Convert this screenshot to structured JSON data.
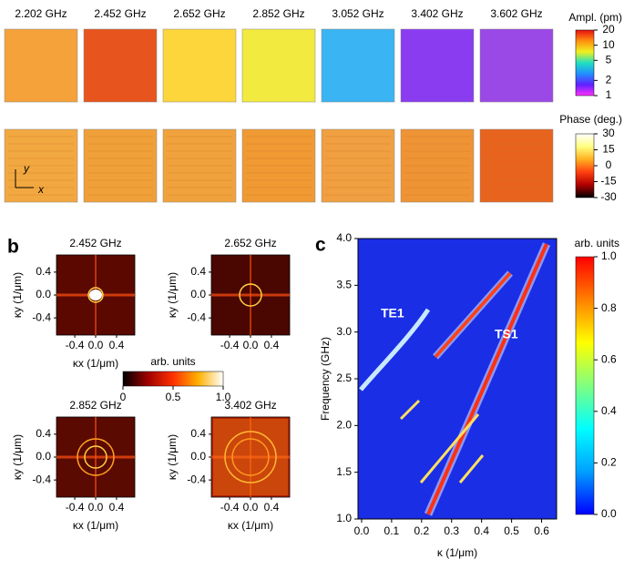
{
  "chart_data": [
    {
      "type": "image-grid",
      "panel_label": "a",
      "titles": [
        "2.202 GHz",
        "2.452 GHz",
        "2.652 GHz",
        "2.852 GHz",
        "3.052 GHz",
        "3.402 GHz",
        "3.602 GHz"
      ],
      "y_label": "y",
      "x_label": "x",
      "colorbars": [
        {
          "title": "Ampl. (pm)",
          "log": true,
          "lim": [
            1,
            20
          ],
          "ticks": [
            20,
            10,
            5,
            2,
            1
          ],
          "colormap": [
            "#ff30ff",
            "#6020ff",
            "#2090ff",
            "#20e0c0",
            "#f0f020",
            "#ff9010",
            "#e81010"
          ]
        },
        {
          "title": "Phase (deg.)",
          "log": false,
          "lim": [
            -30,
            30
          ],
          "ticks": [
            30,
            15,
            0,
            -15,
            -30
          ],
          "colormap": [
            "#000000",
            "#b00000",
            "#ff4010",
            "#ffb020",
            "#ffff80",
            "#ffffff"
          ]
        }
      ]
    },
    {
      "type": "heatmap-grid",
      "panel_label": "b",
      "titles": [
        "2.452 GHz",
        "2.652 GHz",
        "2.852 GHz",
        "3.402 GHz"
      ],
      "x_label": "κx (1/μm)",
      "y_label": "κy (1/μm)",
      "xlim": [
        -0.75,
        0.75
      ],
      "ylim": [
        -0.7,
        0.7
      ],
      "xticks": [
        -0.4,
        {
          "value": 0,
          "label": "0.0"
        },
        0.4
      ],
      "yticks": [
        0.4,
        {
          "value": 0,
          "label": "0.0"
        },
        -0.4
      ],
      "colorbar": {
        "title": "arb. units",
        "lim": [
          0,
          1
        ],
        "ticks": [
          0,
          0.5,
          {
            "value": 1,
            "label": "1.0"
          }
        ],
        "colormap": [
          "#000000",
          "#a00000",
          "#ff3000",
          "#ffb000",
          "#ffffff"
        ]
      }
    },
    {
      "type": "heatmap",
      "panel_label": "c",
      "x_label": "κ (1/μm)",
      "y_label": "Frequency (GHz)",
      "xlim": [
        -0.012,
        0.65
      ],
      "ylim": [
        1,
        4
      ],
      "xticks": [
        {
          "value": 0,
          "label": "0.0"
        },
        0.1,
        0.2,
        0.3,
        0.4,
        0.5,
        0.6
      ],
      "yticks": [
        {
          "value": 1,
          "label": "1.0"
        },
        1.5,
        {
          "value": 2,
          "label": "2.0"
        },
        2.5,
        {
          "value": 3,
          "label": "3.0"
        },
        3.5,
        {
          "value": 4,
          "label": "4.0"
        }
      ],
      "annotations": [
        "TE1",
        "TS1"
      ],
      "colorbar": {
        "title": "arb. units",
        "lim": [
          0,
          1
        ],
        "ticks": [
          {
            "value": 0,
            "label": "0.0"
          },
          0.2,
          0.4,
          0.6,
          0.8,
          {
            "value": 1,
            "label": "1.0"
          }
        ],
        "colormap": [
          "#0000ff",
          "#00a0ff",
          "#00ffff",
          "#80ff80",
          "#ffff00",
          "#ff8000",
          "#ff0000"
        ]
      }
    }
  ]
}
